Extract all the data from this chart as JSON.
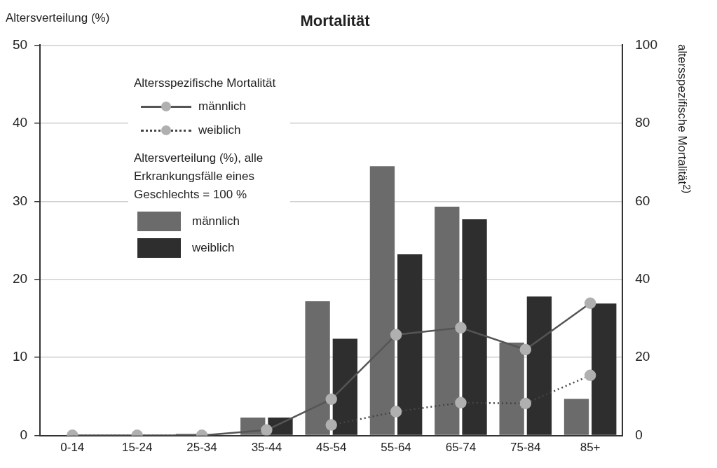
{
  "chart_data": {
    "type": "bar",
    "title": "Mortalität",
    "ylabel": "Altersverteilung (%)",
    "y2label": "altersspezifische Mortalität$^{2)}$",
    "legend_title": "Altersspezifische Mortalität",
    "annotations": [
      "Altersverteilung (%), alle Erkrankungsfälle eines Geschlechts = 100 %"
    ],
    "categories": [
      "0-14",
      "15-24",
      "25-34",
      "35-44",
      "45-54",
      "55-64",
      "65-74",
      "75-84",
      "85+"
    ],
    "series": [
      {
        "name": "männlich",
        "type": "line",
        "axis": "y2",
        "color": "#555555",
        "line_style": "solid",
        "values": [
          0,
          0,
          0,
          1.4,
          9.3,
          25.8,
          27.6,
          22,
          33.9
        ]
      },
      {
        "name": "weiblich",
        "type": "line",
        "axis": "y2",
        "color": "#444444",
        "line_style": "dotted",
        "values": [
          0,
          0,
          0,
          null,
          2.7,
          6.1,
          8.4,
          8.2,
          15.4
        ]
      },
      {
        "name": "männlich",
        "color": "#6b6b6b",
        "values": [
          0,
          null,
          0.2,
          2.3,
          17.2,
          34.5,
          29.3,
          11.9,
          4.7
        ]
      },
      {
        "name": "weiblich",
        "color": "#2e2e2e",
        "values": [
          0,
          null,
          null,
          2.3,
          12.4,
          23.2,
          27.7,
          17.8,
          16.9
        ]
      }
    ],
    "ylim": [
      0,
      50
    ],
    "yticks": [
      0,
      10,
      20,
      30,
      40,
      50
    ],
    "y2lim": [
      0,
      100
    ],
    "y2ticks": [
      0,
      20,
      40,
      60,
      80,
      100
    ],
    "grid": "y",
    "legend": "top left",
    "marker": "circle"
  }
}
